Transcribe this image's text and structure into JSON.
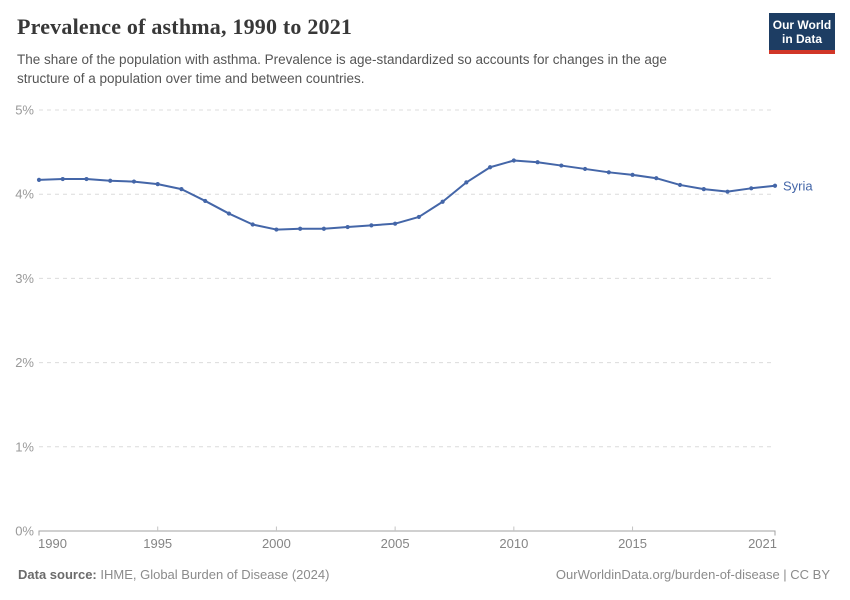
{
  "header": {
    "title": "Prevalence of asthma, 1990 to 2021",
    "subtitle": "The share of the population with asthma. Prevalence is age-standardized so accounts for changes in the age\nstructure of a population over time and between countries.",
    "logo_text": "Our World\nin Data"
  },
  "chart_data": {
    "type": "line",
    "title": "Prevalence of asthma, 1990 to 2021",
    "unit": "%",
    "x": [
      1990,
      1991,
      1992,
      1993,
      1994,
      1995,
      1996,
      1997,
      1998,
      1999,
      2000,
      2001,
      2002,
      2003,
      2004,
      2005,
      2006,
      2007,
      2008,
      2009,
      2010,
      2011,
      2012,
      2013,
      2014,
      2015,
      2016,
      2017,
      2018,
      2019,
      2020,
      2021
    ],
    "series": [
      {
        "name": "Syria",
        "color": "#4466a8",
        "values": [
          4.17,
          4.18,
          4.18,
          4.16,
          4.15,
          4.12,
          4.06,
          3.92,
          3.77,
          3.64,
          3.58,
          3.59,
          3.59,
          3.61,
          3.63,
          3.65,
          3.73,
          3.91,
          4.14,
          4.32,
          4.4,
          4.38,
          4.34,
          4.3,
          4.26,
          4.23,
          4.19,
          4.11,
          4.06,
          4.03,
          4.07,
          4.1
        ]
      }
    ],
    "ylim": [
      0,
      5
    ],
    "yticks": [
      "0%",
      "1%",
      "2%",
      "3%",
      "4%",
      "5%"
    ],
    "xticks": [
      1990,
      1995,
      2000,
      2005,
      2010,
      2015,
      2021
    ],
    "grid": "horizontal-dashed",
    "legend_position": "end-of-line"
  },
  "footer": {
    "datasource_label": "Data source:",
    "datasource_value": " IHME, Global Burden of Disease (2024)",
    "link": "OurWorldinData.org/burden-of-disease | CC BY"
  },
  "colors": {
    "line": "#4466a8",
    "logo_bg": "#1d3d63",
    "logo_accent": "#d13628",
    "grid": "#dcdcdc",
    "axis": "#a0a0a0"
  }
}
